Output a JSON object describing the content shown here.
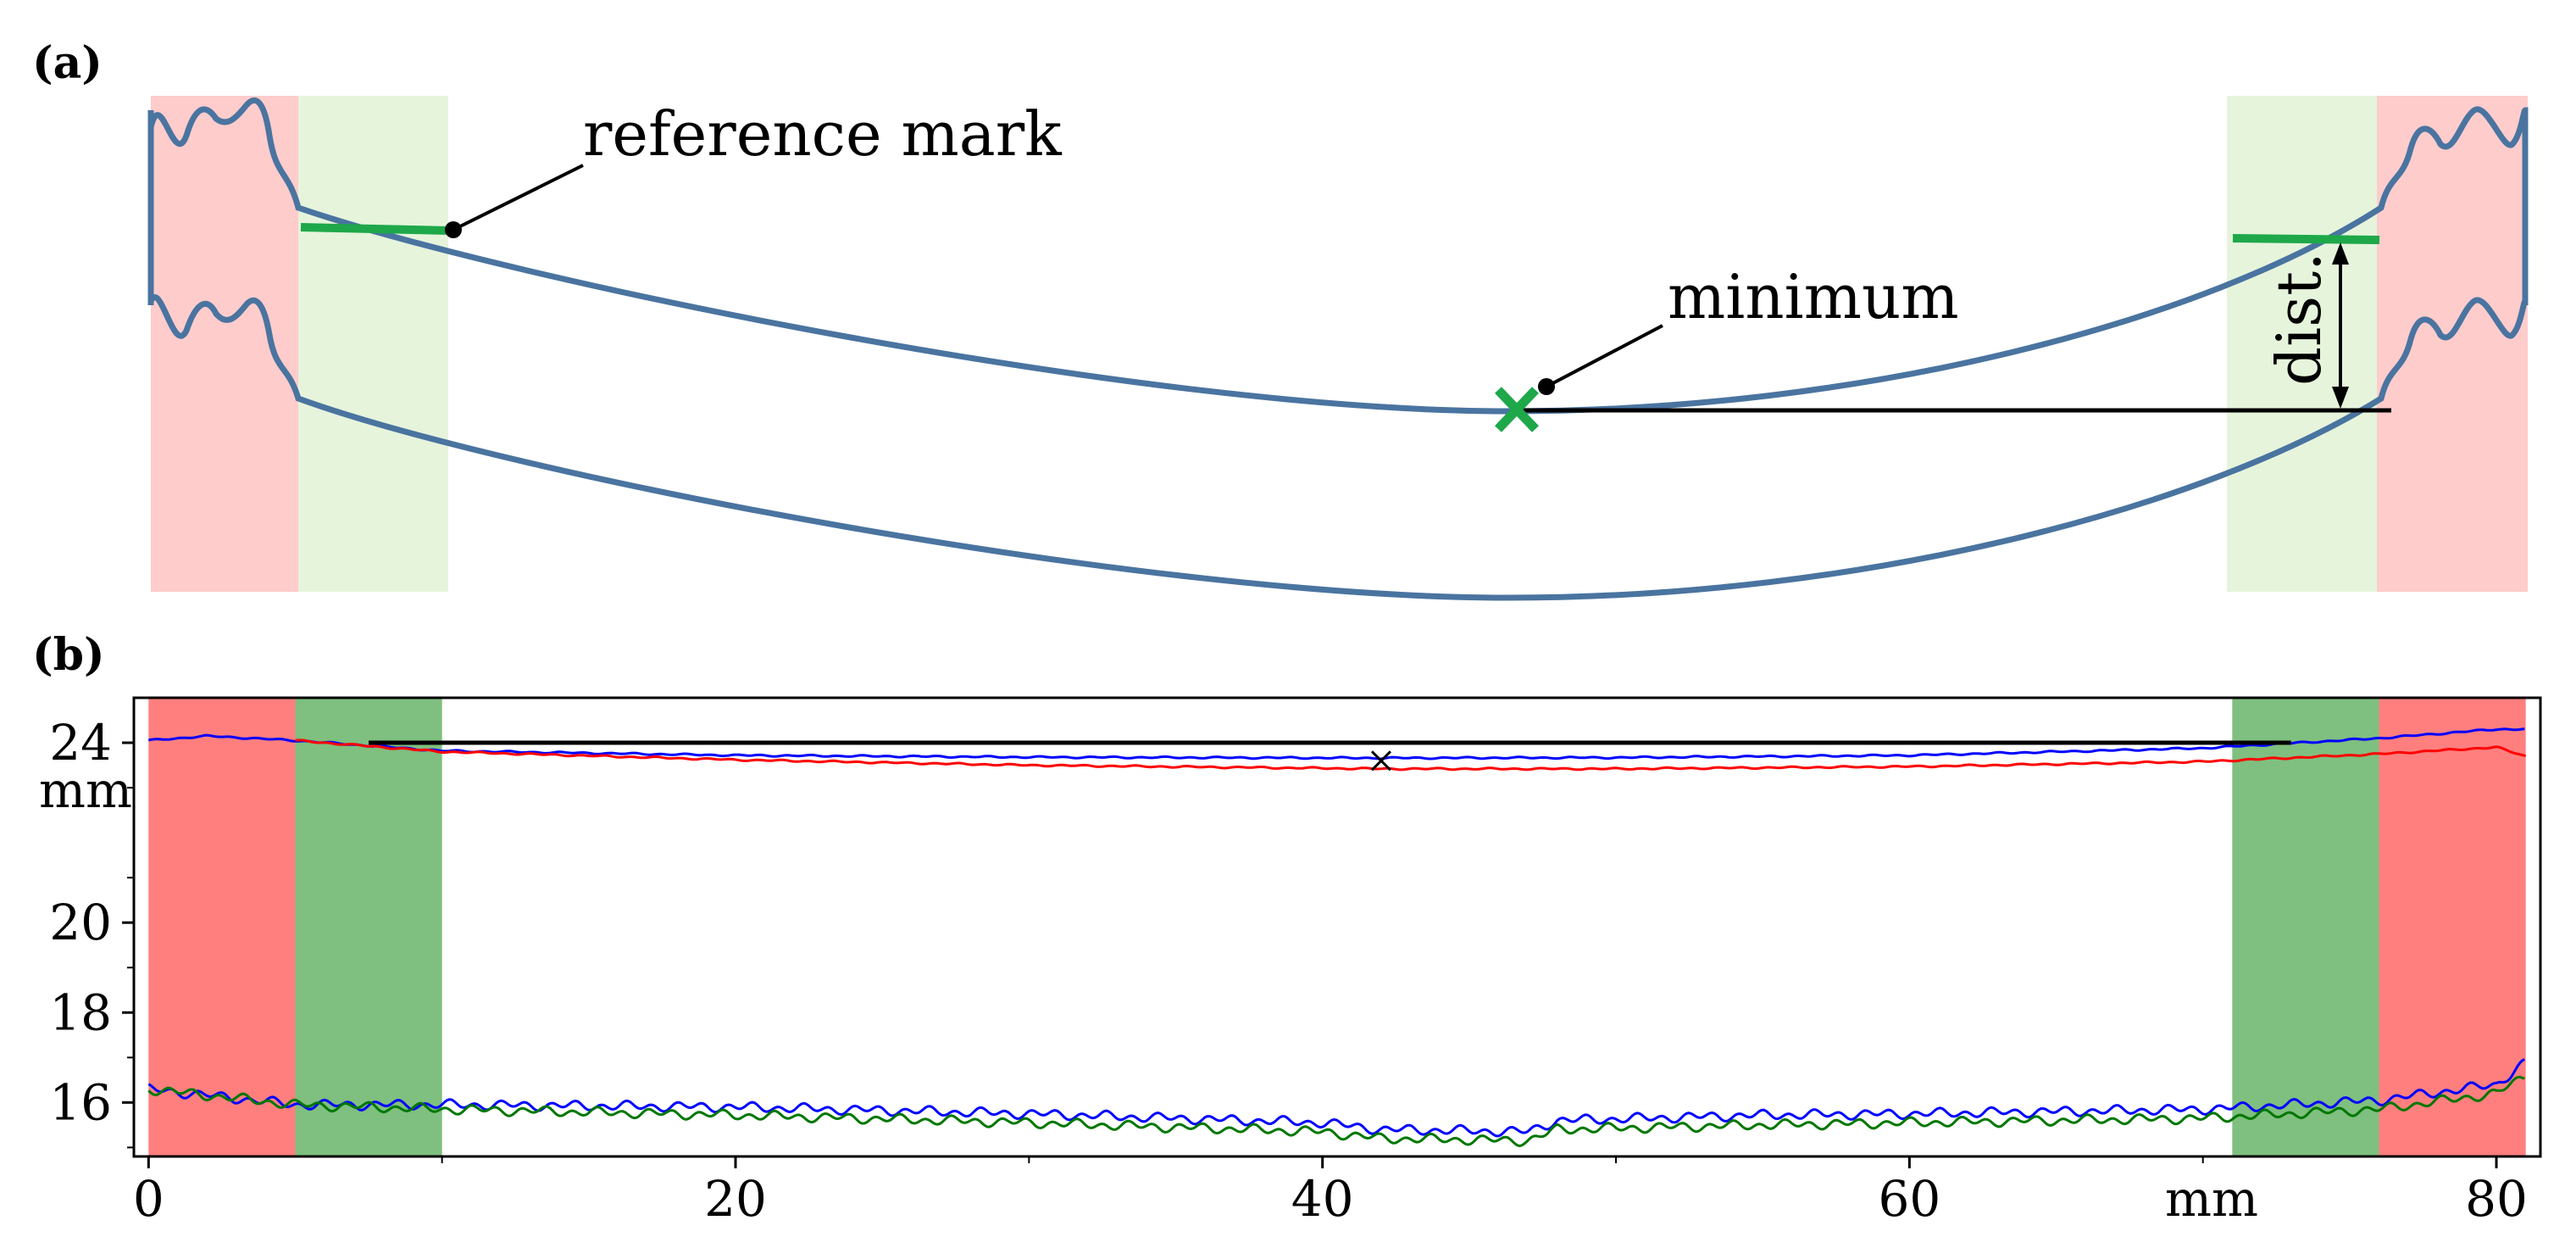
{
  "panel_a": {
    "label": "(a)",
    "annotations": {
      "reference_mark": "reference mark",
      "minimum": "minimum",
      "dist": "dist."
    },
    "colors": {
      "curve": "#4a74a0",
      "mark": "#1ea84a",
      "edge_zone": "#ffcccc",
      "ref_zone": "#e6f4dc"
    }
  },
  "panel_b": {
    "label": "(b)",
    "colors": {
      "edge_zone": "#ff7f7f",
      "ref_zone": "#7fbf7f",
      "blue": "#0000ff",
      "red": "#ff0000",
      "green": "#007700",
      "black": "#000000"
    }
  },
  "chart_data": {
    "type": "line",
    "xlabel": "mm",
    "ylabel": "mm",
    "xlim": [
      -0.5,
      81.5
    ],
    "ylim": [
      14.8,
      25.0
    ],
    "xticks": [
      0,
      20,
      40,
      60,
      80
    ],
    "yticks": [
      16,
      18,
      20,
      24
    ],
    "xtick_labels": [
      "0",
      "20",
      "40",
      "60",
      "80"
    ],
    "ytick_labels": [
      "16",
      "18",
      "20",
      "24"
    ],
    "shaded_regions": [
      {
        "x": [
          0,
          5
        ],
        "color": "red"
      },
      {
        "x": [
          5,
          10
        ],
        "color": "green"
      },
      {
        "x": [
          71,
          76
        ],
        "color": "green"
      },
      {
        "x": [
          76,
          81
        ],
        "color": "red"
      }
    ],
    "reference_line": {
      "x": [
        7.5,
        73
      ],
      "y": 24.0
    },
    "minimum_marker": {
      "x": 42,
      "y": 23.6
    },
    "series": [
      {
        "color": "blue",
        "x": [
          0,
          2,
          5,
          10,
          20,
          30,
          42,
          50,
          60,
          70,
          76,
          80,
          81
        ],
        "y": [
          24.05,
          24.15,
          24.05,
          23.82,
          23.72,
          23.68,
          23.66,
          23.67,
          23.72,
          23.88,
          24.1,
          24.3,
          24.3
        ]
      },
      {
        "color": "red",
        "x": [
          5,
          10,
          20,
          30,
          42,
          50,
          60,
          70,
          76,
          80,
          81
        ],
        "y": [
          24.05,
          23.8,
          23.62,
          23.5,
          23.42,
          23.42,
          23.47,
          23.58,
          23.75,
          23.9,
          23.7
        ]
      },
      {
        "color": "blue",
        "x": [
          0,
          5,
          10,
          20,
          30,
          40,
          42,
          47,
          48,
          55,
          60,
          70,
          76,
          80,
          81
        ],
        "y": [
          16.3,
          15.95,
          15.95,
          15.9,
          15.75,
          15.55,
          15.4,
          15.35,
          15.6,
          15.72,
          15.75,
          15.85,
          16.05,
          16.4,
          16.9
        ]
      },
      {
        "color": "green",
        "x": [
          0,
          5,
          10,
          20,
          30,
          40,
          42,
          47,
          48,
          55,
          60,
          70,
          76,
          80,
          81
        ],
        "y": [
          16.3,
          15.95,
          15.85,
          15.72,
          15.55,
          15.35,
          15.2,
          15.15,
          15.4,
          15.5,
          15.55,
          15.65,
          15.85,
          16.2,
          16.6
        ]
      }
    ]
  }
}
